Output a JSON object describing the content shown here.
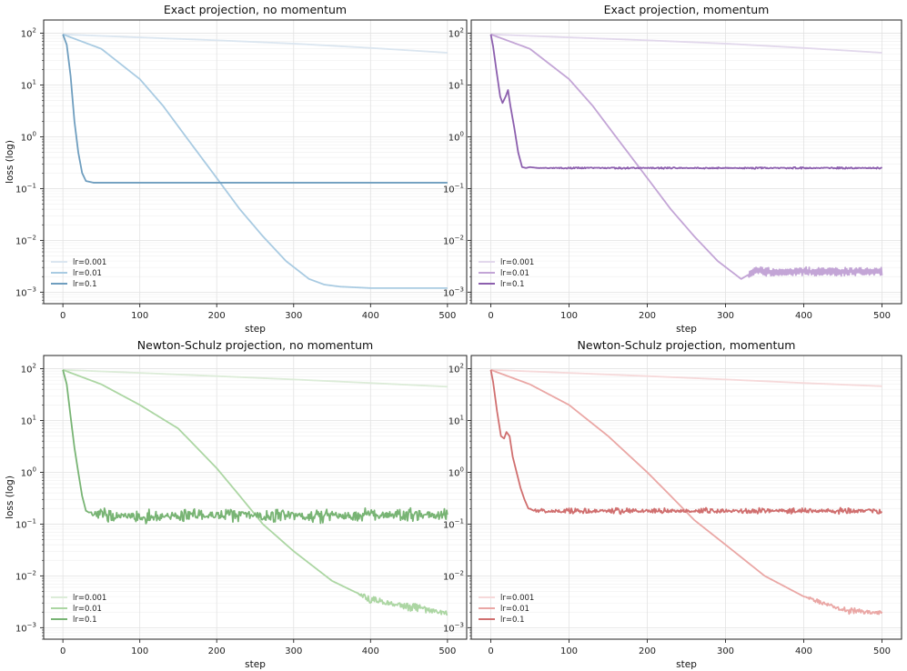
{
  "chart_data": [
    {
      "type": "line",
      "title": "Exact projection, no momentum",
      "xlabel": "step",
      "ylabel": "loss (log)",
      "yscale": "log",
      "xlim": [
        -25,
        525
      ],
      "ylim": [
        0.0006,
        180
      ],
      "xticks": [
        "0",
        "100",
        "200",
        "300",
        "400",
        "500"
      ],
      "yticks": [
        "10^-3",
        "10^-2",
        "10^-1",
        "10^0",
        "10^1",
        "10^2"
      ],
      "legend_position": "lower-left",
      "series": [
        {
          "name": "lr=0.001",
          "color": "#dbe6f0",
          "points": [
            [
              0,
              95
            ],
            [
              100,
              83
            ],
            [
              200,
              73
            ],
            [
              300,
              63
            ],
            [
              400,
              52
            ],
            [
              500,
              42
            ]
          ]
        },
        {
          "name": "lr=0.01",
          "color": "#a9cbe2",
          "points": [
            [
              0,
              95
            ],
            [
              50,
              50
            ],
            [
              100,
              13
            ],
            [
              130,
              4
            ],
            [
              160,
              1
            ],
            [
              180,
              0.4
            ],
            [
              200,
              0.16
            ],
            [
              230,
              0.04
            ],
            [
              260,
              0.012
            ],
            [
              290,
              0.004
            ],
            [
              320,
              0.0018
            ],
            [
              340,
              0.0014
            ],
            [
              360,
              0.00128
            ],
            [
              400,
              0.0012
            ],
            [
              500,
              0.0012
            ]
          ]
        },
        {
          "name": "lr=0.1",
          "color": "#6f9ebf",
          "points": [
            [
              0,
              95
            ],
            [
              5,
              60
            ],
            [
              10,
              15
            ],
            [
              15,
              2
            ],
            [
              20,
              0.5
            ],
            [
              25,
              0.2
            ],
            [
              30,
              0.14
            ],
            [
              40,
              0.13
            ],
            [
              500,
              0.13
            ]
          ]
        }
      ]
    },
    {
      "type": "line",
      "title": "Exact projection, momentum",
      "xlabel": "step",
      "ylabel": "",
      "yscale": "log",
      "xlim": [
        -25,
        525
      ],
      "ylim": [
        0.0006,
        180
      ],
      "xticks": [
        "0",
        "100",
        "200",
        "300",
        "400",
        "500"
      ],
      "yticks": [
        "10^-3",
        "10^-2",
        "10^-1",
        "10^0",
        "10^1",
        "10^2"
      ],
      "legend_position": "lower-left",
      "series": [
        {
          "name": "lr=0.001",
          "color": "#e2d8ec",
          "points": [
            [
              0,
              95
            ],
            [
              100,
              83
            ],
            [
              200,
              73
            ],
            [
              300,
              63
            ],
            [
              400,
              52
            ],
            [
              500,
              42
            ]
          ]
        },
        {
          "name": "lr=0.01",
          "color": "#c3a5d6",
          "points": [
            [
              0,
              95
            ],
            [
              50,
              50
            ],
            [
              100,
              13
            ],
            [
              130,
              4
            ],
            [
              160,
              1
            ],
            [
              180,
              0.4
            ],
            [
              200,
              0.16
            ],
            [
              230,
              0.04
            ],
            [
              260,
              0.012
            ],
            [
              290,
              0.004
            ],
            [
              320,
              0.0018
            ],
            [
              340,
              0.0027
            ],
            [
              360,
              0.0024
            ],
            [
              400,
              0.0025
            ],
            [
              500,
              0.0025
            ]
          ]
        },
        {
          "name": "lr=0.1",
          "color": "#8c5fae",
          "points": [
            [
              0,
              95
            ],
            [
              3,
              55
            ],
            [
              7,
              20
            ],
            [
              12,
              6
            ],
            [
              15,
              4.5
            ],
            [
              19,
              6
            ],
            [
              22,
              8
            ],
            [
              25,
              4
            ],
            [
              30,
              1.5
            ],
            [
              35,
              0.5
            ],
            [
              40,
              0.26
            ],
            [
              45,
              0.25
            ],
            [
              50,
              0.26
            ],
            [
              60,
              0.25
            ],
            [
              500,
              0.25
            ]
          ]
        }
      ]
    },
    {
      "type": "line",
      "title": "Newton-Schulz projection, no momentum",
      "xlabel": "step",
      "ylabel": "loss (log)",
      "yscale": "log",
      "xlim": [
        -25,
        525
      ],
      "ylim": [
        0.0006,
        180
      ],
      "xticks": [
        "0",
        "100",
        "200",
        "300",
        "400",
        "500"
      ],
      "yticks": [
        "10^-3",
        "10^-2",
        "10^-1",
        "10^0",
        "10^1",
        "10^2"
      ],
      "legend_position": "lower-left",
      "series": [
        {
          "name": "lr=0.001",
          "color": "#dcecd8",
          "points": [
            [
              0,
              95
            ],
            [
              100,
              83
            ],
            [
              200,
              72
            ],
            [
              300,
              62
            ],
            [
              400,
              53
            ],
            [
              500,
              45
            ]
          ]
        },
        {
          "name": "lr=0.01",
          "color": "#acd6a3",
          "points": [
            [
              0,
              95
            ],
            [
              50,
              50
            ],
            [
              100,
              20
            ],
            [
              150,
              7
            ],
            [
              200,
              1.2
            ],
            [
              230,
              0.35
            ],
            [
              260,
              0.1
            ],
            [
              300,
              0.03
            ],
            [
              350,
              0.008
            ],
            [
              400,
              0.0035
            ],
            [
              450,
              0.0025
            ],
            [
              500,
              0.0019
            ]
          ]
        },
        {
          "name": "lr=0.1",
          "color": "#78b474",
          "points": [
            [
              0,
              95
            ],
            [
              5,
              50
            ],
            [
              10,
              12
            ],
            [
              15,
              3
            ],
            [
              20,
              1
            ],
            [
              25,
              0.35
            ],
            [
              30,
              0.18
            ],
            [
              40,
              0.15
            ],
            [
              100,
              0.14
            ],
            [
              200,
              0.15
            ],
            [
              300,
              0.14
            ],
            [
              400,
              0.15
            ],
            [
              500,
              0.15
            ]
          ]
        }
      ]
    },
    {
      "type": "line",
      "title": "Newton-Schulz projection, momentum",
      "xlabel": "step",
      "ylabel": "",
      "yscale": "log",
      "xlim": [
        -25,
        525
      ],
      "ylim": [
        0.0006,
        180
      ],
      "xticks": [
        "0",
        "100",
        "200",
        "300",
        "400",
        "500"
      ],
      "yticks": [
        "10^-3",
        "10^-2",
        "10^-1",
        "10^0",
        "10^1",
        "10^2"
      ],
      "legend_position": "lower-left",
      "series": [
        {
          "name": "lr=0.001",
          "color": "#f6d9da",
          "points": [
            [
              0,
              95
            ],
            [
              100,
              83
            ],
            [
              200,
              72
            ],
            [
              300,
              62
            ],
            [
              400,
              53
            ],
            [
              500,
              46
            ]
          ]
        },
        {
          "name": "lr=0.01",
          "color": "#eaa7a5",
          "points": [
            [
              0,
              95
            ],
            [
              50,
              50
            ],
            [
              100,
              20
            ],
            [
              150,
              5
            ],
            [
              200,
              1
            ],
            [
              230,
              0.35
            ],
            [
              260,
              0.12
            ],
            [
              300,
              0.04
            ],
            [
              350,
              0.01
            ],
            [
              400,
              0.004
            ],
            [
              450,
              0.0022
            ],
            [
              500,
              0.0019
            ]
          ]
        },
        {
          "name": "lr=0.1",
          "color": "#d06f6f",
          "points": [
            [
              0,
              95
            ],
            [
              3,
              55
            ],
            [
              8,
              15
            ],
            [
              13,
              5
            ],
            [
              17,
              4.5
            ],
            [
              20,
              6
            ],
            [
              24,
              5
            ],
            [
              28,
              2
            ],
            [
              33,
              1
            ],
            [
              38,
              0.5
            ],
            [
              43,
              0.3
            ],
            [
              48,
              0.2
            ],
            [
              60,
              0.18
            ],
            [
              200,
              0.18
            ],
            [
              500,
              0.18
            ]
          ]
        }
      ]
    }
  ]
}
